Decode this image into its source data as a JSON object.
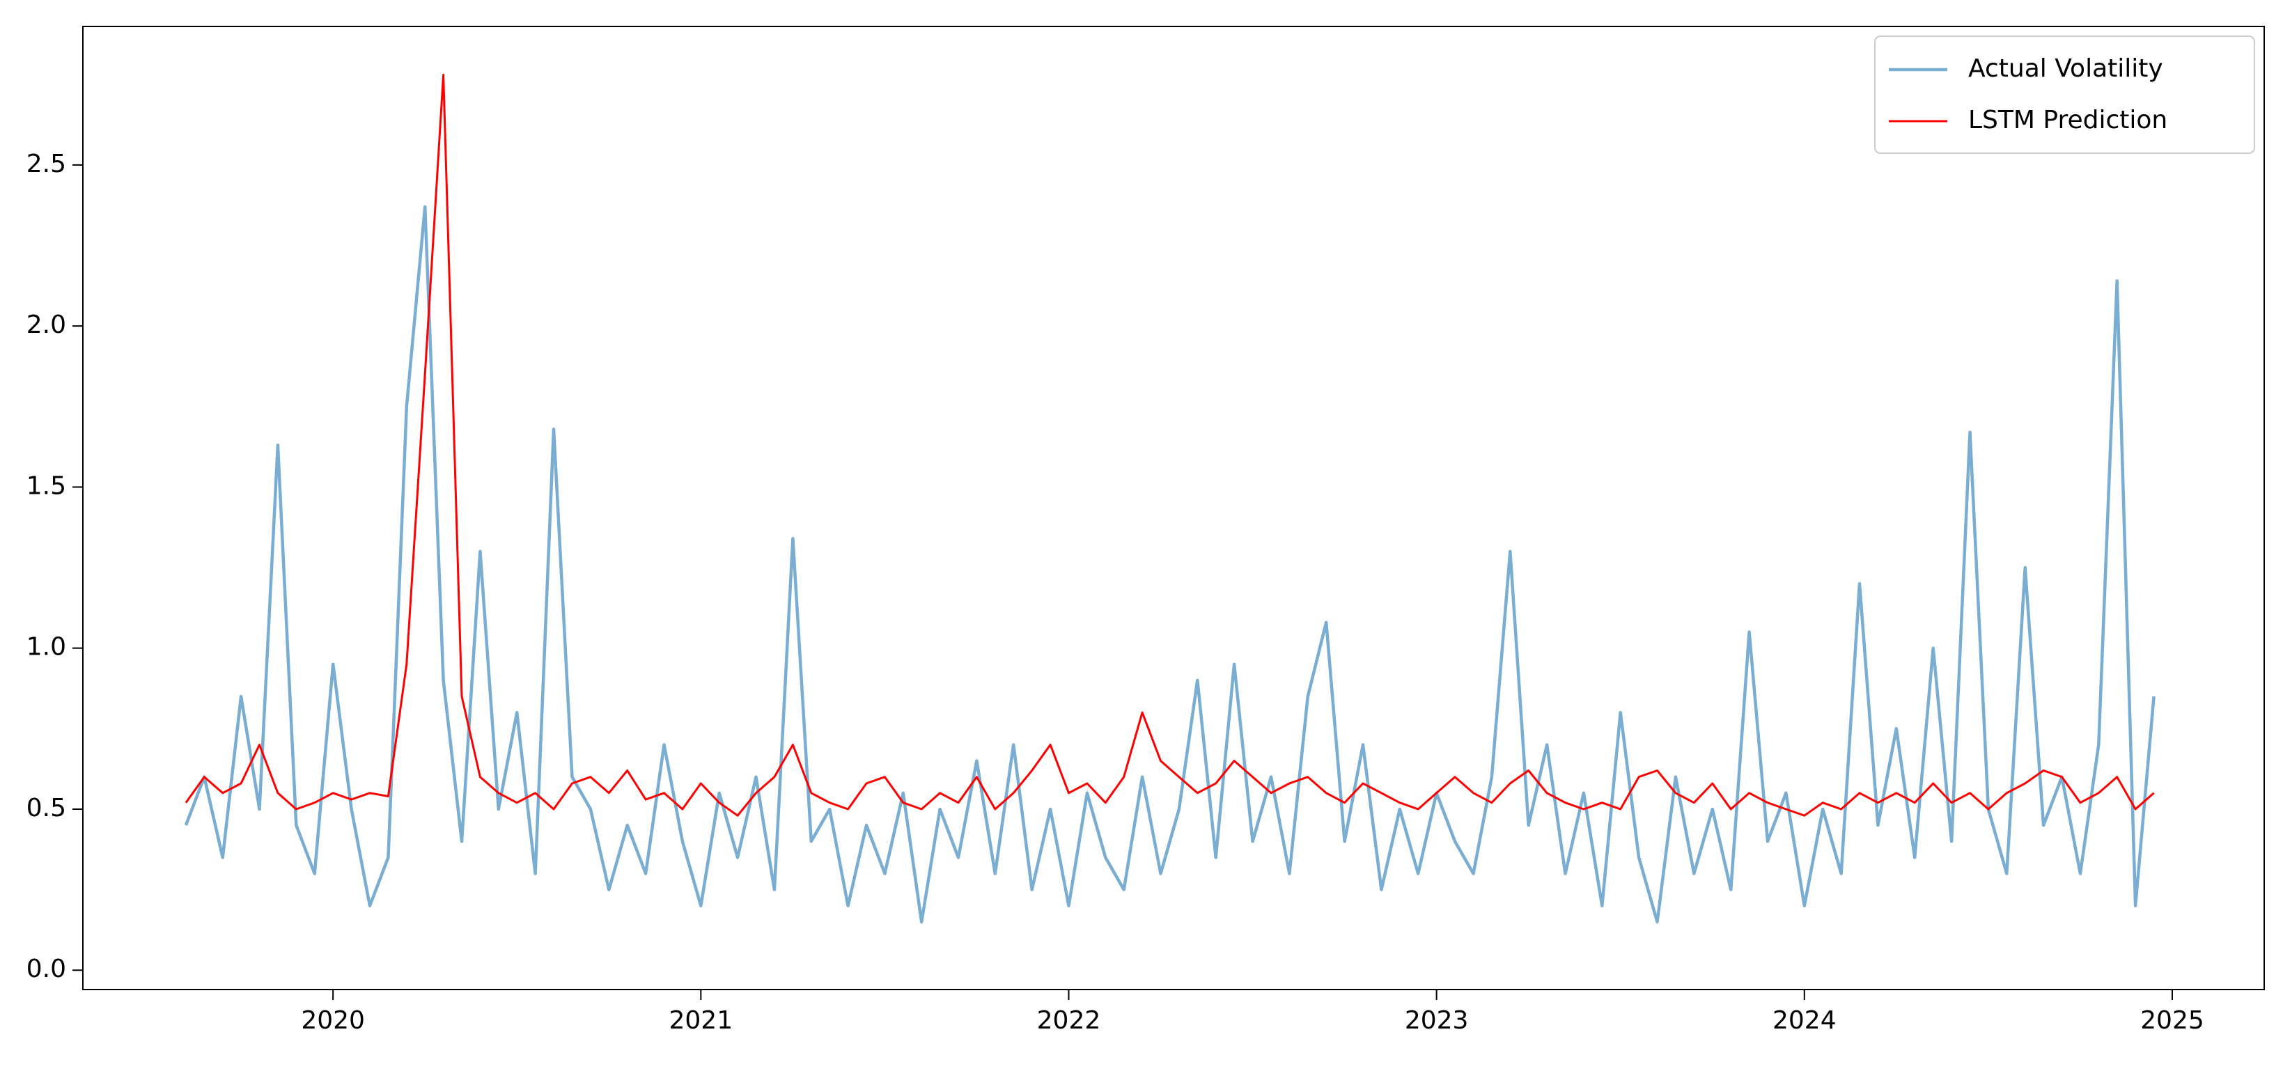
{
  "chart_data": {
    "type": "line",
    "x": [
      2019.6,
      2019.65,
      2019.7,
      2019.75,
      2019.8,
      2019.85,
      2019.9,
      2019.95,
      2020.0,
      2020.05,
      2020.1,
      2020.15,
      2020.2,
      2020.25,
      2020.3,
      2020.35,
      2020.4,
      2020.45,
      2020.5,
      2020.55,
      2020.6,
      2020.65,
      2020.7,
      2020.75,
      2020.8,
      2020.85,
      2020.9,
      2020.95,
      2021.0,
      2021.05,
      2021.1,
      2021.15,
      2021.2,
      2021.25,
      2021.3,
      2021.35,
      2021.4,
      2021.45,
      2021.5,
      2021.55,
      2021.6,
      2021.65,
      2021.7,
      2021.75,
      2021.8,
      2021.85,
      2021.9,
      2021.95,
      2022.0,
      2022.05,
      2022.1,
      2022.15,
      2022.2,
      2022.25,
      2022.3,
      2022.35,
      2022.4,
      2022.45,
      2022.5,
      2022.55,
      2022.6,
      2022.65,
      2022.7,
      2022.75,
      2022.8,
      2022.85,
      2022.9,
      2022.95,
      2023.0,
      2023.05,
      2023.1,
      2023.15,
      2023.2,
      2023.25,
      2023.3,
      2023.35,
      2023.4,
      2023.45,
      2023.5,
      2023.55,
      2023.6,
      2023.65,
      2023.7,
      2023.75,
      2023.8,
      2023.85,
      2023.9,
      2023.95,
      2024.0,
      2024.05,
      2024.1,
      2024.15,
      2024.2,
      2024.25,
      2024.3,
      2024.35,
      2024.4,
      2024.45,
      2024.5,
      2024.55,
      2024.6,
      2024.65,
      2024.7,
      2024.75,
      2024.8,
      2024.85,
      2024.9,
      2024.95
    ],
    "series": [
      {
        "name": "Actual Volatility",
        "color": "#79add2",
        "values": [
          0.45,
          0.6,
          0.35,
          0.85,
          0.5,
          1.63,
          0.45,
          0.3,
          0.95,
          0.5,
          0.2,
          0.35,
          1.75,
          2.37,
          0.9,
          0.4,
          1.3,
          0.5,
          0.8,
          0.3,
          1.68,
          0.6,
          0.5,
          0.25,
          0.45,
          0.3,
          0.7,
          0.4,
          0.2,
          0.55,
          0.35,
          0.6,
          0.25,
          1.34,
          0.4,
          0.5,
          0.2,
          0.45,
          0.3,
          0.55,
          0.15,
          0.5,
          0.35,
          0.65,
          0.3,
          0.7,
          0.25,
          0.5,
          0.2,
          0.55,
          0.35,
          0.25,
          0.6,
          0.3,
          0.5,
          0.9,
          0.35,
          0.95,
          0.4,
          0.6,
          0.3,
          0.85,
          1.08,
          0.4,
          0.7,
          0.25,
          0.5,
          0.3,
          0.55,
          0.4,
          0.3,
          0.6,
          1.3,
          0.45,
          0.7,
          0.3,
          0.55,
          0.2,
          0.8,
          0.35,
          0.15,
          0.6,
          0.3,
          0.5,
          0.25,
          1.05,
          0.4,
          0.55,
          0.2,
          0.5,
          0.3,
          1.2,
          0.45,
          0.75,
          0.35,
          1.0,
          0.4,
          1.67,
          0.5,
          0.3,
          1.25,
          0.45,
          0.6,
          0.3,
          0.7,
          2.14,
          0.2,
          0.85
        ]
      },
      {
        "name": "LSTM Prediction",
        "color": "#ff0000",
        "values": [
          0.52,
          0.6,
          0.55,
          0.58,
          0.7,
          0.55,
          0.5,
          0.52,
          0.55,
          0.53,
          0.55,
          0.54,
          0.95,
          1.85,
          2.78,
          0.85,
          0.6,
          0.55,
          0.52,
          0.55,
          0.5,
          0.58,
          0.6,
          0.55,
          0.62,
          0.53,
          0.55,
          0.5,
          0.58,
          0.52,
          0.48,
          0.55,
          0.6,
          0.7,
          0.55,
          0.52,
          0.5,
          0.58,
          0.6,
          0.52,
          0.5,
          0.55,
          0.52,
          0.6,
          0.5,
          0.55,
          0.62,
          0.7,
          0.55,
          0.58,
          0.52,
          0.6,
          0.8,
          0.65,
          0.6,
          0.55,
          0.58,
          0.65,
          0.6,
          0.55,
          0.58,
          0.6,
          0.55,
          0.52,
          0.58,
          0.55,
          0.52,
          0.5,
          0.55,
          0.6,
          0.55,
          0.52,
          0.58,
          0.62,
          0.55,
          0.52,
          0.5,
          0.52,
          0.5,
          0.6,
          0.62,
          0.55,
          0.52,
          0.58,
          0.5,
          0.55,
          0.52,
          0.5,
          0.48,
          0.52,
          0.5,
          0.55,
          0.52,
          0.55,
          0.52,
          0.58,
          0.52,
          0.55,
          0.5,
          0.55,
          0.58,
          0.62,
          0.6,
          0.52,
          0.55,
          0.6,
          0.5,
          0.55
        ]
      }
    ],
    "xlim": [
      2019.32,
      2025.25
    ],
    "xticks": [
      2020,
      2021,
      2022,
      2023,
      2024,
      2025
    ],
    "ylim": [
      -0.06,
      2.93
    ],
    "yticks": [
      {
        "value": 0,
        "label": "0.0"
      },
      0.5,
      {
        "value": 1,
        "label": "1.0"
      },
      1.5,
      {
        "value": 2,
        "label": "2.0"
      },
      2.5
    ],
    "legend": "upper right"
  }
}
